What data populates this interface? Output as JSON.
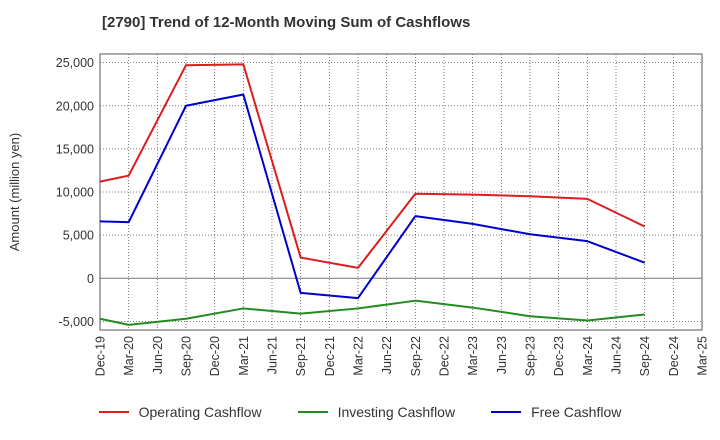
{
  "chart_data": {
    "type": "line",
    "title": "[2790]  Trend of 12-Month Moving Sum of Cashflows",
    "xlabel": "",
    "ylabel": "Amount (million yen)",
    "x_tick_labels": [
      "Dec-19",
      "Mar-20",
      "Jun-20",
      "Sep-20",
      "Dec-20",
      "Mar-21",
      "Jun-21",
      "Sep-21",
      "Dec-21",
      "Mar-22",
      "Jun-22",
      "Sep-22",
      "Dec-22",
      "Mar-23",
      "Jun-23",
      "Sep-23",
      "Dec-23",
      "Mar-24",
      "Jun-24",
      "Sep-24",
      "Dec-24",
      "Mar-25"
    ],
    "y_tick_labels": [
      "25,000",
      "20,000",
      "15,000",
      "10,000",
      "5,000",
      "0",
      "-5,000"
    ],
    "ylim": [
      -6000,
      26000
    ],
    "yticks": [
      25000,
      20000,
      15000,
      10000,
      5000,
      0,
      -5000
    ],
    "grid": true,
    "legend_position": "bottom",
    "series": [
      {
        "name": "Operating Cashflow",
        "color": "#dd1c1c",
        "points": [
          {
            "x": "Dec-19",
            "y": 11200
          },
          {
            "x": "Mar-20",
            "y": 11900
          },
          {
            "x": "Sep-20",
            "y": 24700
          },
          {
            "x": "Mar-21",
            "y": 24800
          },
          {
            "x": "Sep-21",
            "y": 2400
          },
          {
            "x": "Mar-22",
            "y": 1200
          },
          {
            "x": "Sep-22",
            "y": 9800
          },
          {
            "x": "Mar-23",
            "y": 9700
          },
          {
            "x": "Sep-23",
            "y": 9500
          },
          {
            "x": "Mar-24",
            "y": 9200
          },
          {
            "x": "Sep-24",
            "y": 6000
          }
        ]
      },
      {
        "name": "Investing Cashflow",
        "color": "#228b22",
        "points": [
          {
            "x": "Dec-19",
            "y": -4700
          },
          {
            "x": "Mar-20",
            "y": -5400
          },
          {
            "x": "Sep-20",
            "y": -4700
          },
          {
            "x": "Mar-21",
            "y": -3500
          },
          {
            "x": "Sep-21",
            "y": -4100
          },
          {
            "x": "Mar-22",
            "y": -3500
          },
          {
            "x": "Sep-22",
            "y": -2600
          },
          {
            "x": "Mar-23",
            "y": -3400
          },
          {
            "x": "Sep-23",
            "y": -4400
          },
          {
            "x": "Mar-24",
            "y": -4900
          },
          {
            "x": "Sep-24",
            "y": -4200
          }
        ]
      },
      {
        "name": "Free Cashflow",
        "color": "#0000cc",
        "points": [
          {
            "x": "Dec-19",
            "y": 6600
          },
          {
            "x": "Mar-20",
            "y": 6500
          },
          {
            "x": "Sep-20",
            "y": 20000
          },
          {
            "x": "Mar-21",
            "y": 21300
          },
          {
            "x": "Sep-21",
            "y": -1700
          },
          {
            "x": "Mar-22",
            "y": -2300
          },
          {
            "x": "Sep-22",
            "y": 7200
          },
          {
            "x": "Mar-23",
            "y": 6300
          },
          {
            "x": "Sep-23",
            "y": 5100
          },
          {
            "x": "Mar-24",
            "y": 4300
          },
          {
            "x": "Sep-24",
            "y": 1800
          }
        ]
      }
    ]
  }
}
